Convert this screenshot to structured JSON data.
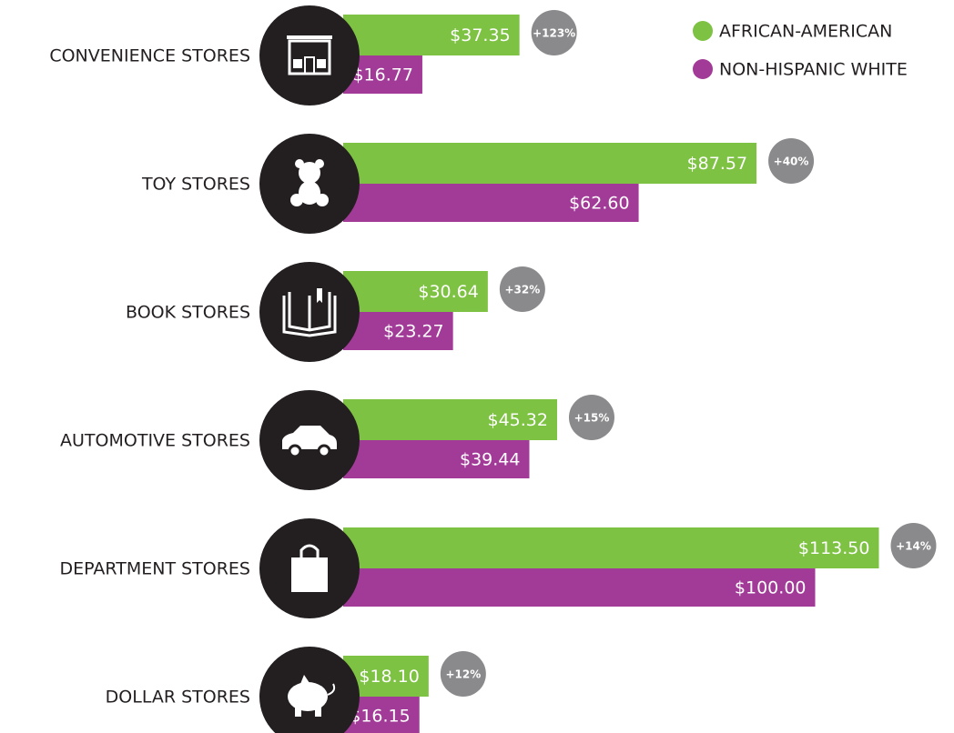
{
  "chart_data": {
    "type": "hbar",
    "categories": [
      "CONVENIENCE STORES",
      "TOY STORES",
      "BOOK STORES",
      "AUTOMOTIVE STORES",
      "DEPARTMENT STORES",
      "DOLLAR STORES"
    ],
    "series": [
      {
        "name": "AFRICAN-AMERICAN",
        "color": "#7dc242",
        "values": [
          37.35,
          87.57,
          30.64,
          45.32,
          113.5,
          18.1
        ],
        "value_labels": [
          "$37.35",
          "$87.57",
          "$30.64",
          "$45.32",
          "$113.50",
          "$18.10"
        ]
      },
      {
        "name": "NON-HISPANIC WHITE",
        "color": "#a23a97",
        "values": [
          16.77,
          62.6,
          23.27,
          39.44,
          100.0,
          16.15
        ],
        "value_labels": [
          "$16.77",
          "$62.60",
          "$23.27",
          "$39.44",
          "$100.00",
          "$16.15"
        ]
      }
    ],
    "annotations": [
      "+123%",
      "+40%",
      "+32%",
      "+15%",
      "+14%",
      "+12%"
    ],
    "annotation_color": "#8a8a8c",
    "icon_color": "#231f20",
    "legend": "top-right"
  }
}
